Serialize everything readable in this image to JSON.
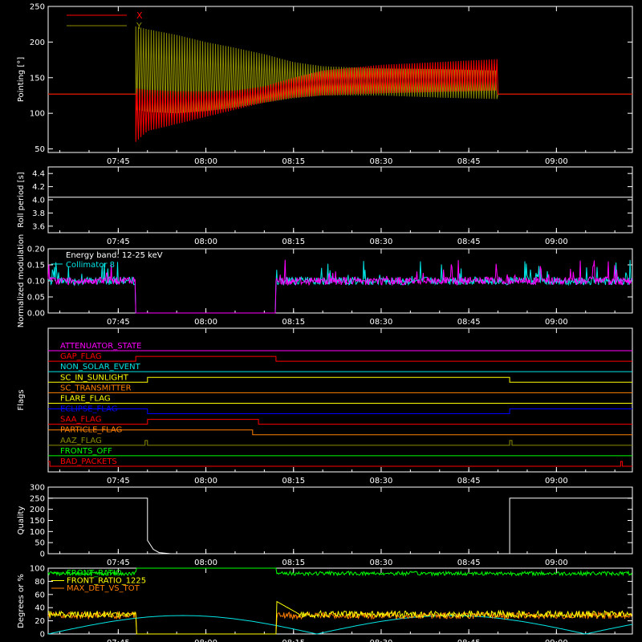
{
  "time_ticks": [
    "07:45",
    "08:00",
    "08:15",
    "08:30",
    "08:45",
    "09:00"
  ],
  "chart_data": [
    {
      "type": "line",
      "ylabel": "Pointing [°]",
      "ylim": [
        45,
        250
      ],
      "yticks": [
        50,
        100,
        150,
        200,
        250
      ],
      "xlim": [
        "07:33",
        "09:13"
      ],
      "series": [
        {
          "name": "X",
          "color": "#ff0000",
          "baseline": 127,
          "envelope_time": [
            "07:48",
            "07:50",
            "07:55",
            "08:00",
            "08:05",
            "08:10",
            "08:15",
            "08:20",
            "08:30",
            "08:40",
            "08:50"
          ],
          "envelope_low": [
            60,
            75,
            85,
            95,
            105,
            115,
            122,
            125,
            128,
            130,
            132
          ],
          "envelope_high": [
            135,
            133,
            131,
            131,
            132,
            138,
            150,
            160,
            168,
            172,
            176
          ]
        },
        {
          "name": "Y",
          "color": "#8b8b00",
          "baseline": 127,
          "envelope_time": [
            "07:48",
            "07:50",
            "07:55",
            "08:00",
            "08:05",
            "08:10",
            "08:15",
            "08:20",
            "08:30",
            "08:40",
            "08:50"
          ],
          "envelope_low": [
            105,
            102,
            100,
            103,
            108,
            115,
            121,
            125,
            125,
            122,
            120
          ],
          "envelope_high": [
            222,
            218,
            210,
            200,
            192,
            183,
            172,
            166,
            163,
            162,
            160
          ]
        }
      ]
    },
    {
      "type": "line",
      "ylabel": "Roll period [s]",
      "ylim": [
        3.5,
        4.5
      ],
      "yticks": [
        "3.6",
        "3.8",
        "4.0",
        "4.2",
        "4.4"
      ],
      "series": [
        {
          "color": "#ffffff",
          "x": [
            "07:33",
            "09:13"
          ],
          "y": [
            4.04,
            4.04
          ]
        }
      ]
    },
    {
      "type": "line",
      "ylabel": "Normalized modulation",
      "ylim": [
        0,
        0.2
      ],
      "yticks": [
        "0.00",
        "0.05",
        "0.10",
        "0.15",
        "0.20"
      ],
      "annotation": "Energy band: 12-25 keV",
      "series": [
        {
          "name": "Collimator 8",
          "color": "#00e5e5",
          "mean": 0.1,
          "gap": [
            "07:48",
            "08:12"
          ]
        },
        {
          "color": "#ff00ff",
          "mean": 0.1,
          "gap": [
            "07:48",
            "08:12"
          ]
        }
      ]
    },
    {
      "type": "line",
      "ylabel": "Flags",
      "flags": [
        {
          "label": "ATTENUATOR_STATE",
          "color": "#ff00ff",
          "on": []
        },
        {
          "label": "GAP_FLAG",
          "color": "#ff0000",
          "on": [
            [
              "07:48",
              "08:12"
            ]
          ]
        },
        {
          "label": "NON_SOLAR_EVENT",
          "color": "#00e5e5",
          "on": []
        },
        {
          "label": "SC_IN_SUNLIGHT",
          "color": "#ffff00",
          "on": [
            [
              "07:50",
              "08:52"
            ]
          ]
        },
        {
          "label": "SC_TRANSMITTER",
          "color": "#ff7f00",
          "on": []
        },
        {
          "label": "FLARE_FLAG",
          "color": "#ffff00",
          "on": []
        },
        {
          "label": "ECLIPSE_FLAG",
          "color": "#0000ff",
          "on": [
            [
              "07:33",
              "07:50"
            ],
            [
              "08:52",
              "09:13"
            ]
          ]
        },
        {
          "label": "SAA_FLAG",
          "color": "#ff0000",
          "on": [
            [
              "07:50",
              "08:09"
            ]
          ]
        },
        {
          "label": "PARTICLE_FLAG",
          "color": "#ff7f00",
          "on": [
            [
              "07:33",
              "08:08"
            ]
          ]
        },
        {
          "label": "AAZ_FLAG",
          "color": "#8b8b00",
          "on": [
            [
              "07:49.6",
              "07:50"
            ],
            [
              "08:52",
              "08:52.4"
            ]
          ]
        },
        {
          "label": "FRONTS_OFF",
          "color": "#00ff00",
          "on": []
        },
        {
          "label": "BAD_PACKETS",
          "color": "#ff0000",
          "on": [
            [
              "07:33",
              "07:33.3"
            ],
            [
              "09:11",
              "09:11.3"
            ]
          ]
        }
      ]
    },
    {
      "type": "line",
      "ylabel": "Quality",
      "ylim": [
        0,
        300
      ],
      "yticks": [
        0,
        50,
        100,
        150,
        200,
        250,
        300
      ],
      "series": [
        {
          "color": "#ffffff",
          "x": [
            "07:33",
            "07:50",
            "07:50",
            "07:51",
            "07:52",
            "07:54",
            "08:52",
            "08:52",
            "09:13"
          ],
          "y": [
            250,
            250,
            60,
            20,
            5,
            0,
            0,
            250,
            250
          ]
        }
      ]
    },
    {
      "type": "line",
      "ylabel": "Degrees or %",
      "ylim": [
        0,
        100
      ],
      "yticks": [
        0,
        20,
        40,
        60,
        80,
        100
      ],
      "series": [
        {
          "name": "FRONT_RATIO",
          "color": "#00ff00",
          "mean": 92
        },
        {
          "name": "FRONT_RATIO_1225",
          "color": "#ffff00",
          "mean": 30
        },
        {
          "name": "MAX_DET_VS_TOT",
          "color": "#ff7f00",
          "mean": 28
        },
        {
          "color": "#00e5e5",
          "range": [
            0,
            28
          ],
          "period_min": 46
        }
      ]
    }
  ]
}
